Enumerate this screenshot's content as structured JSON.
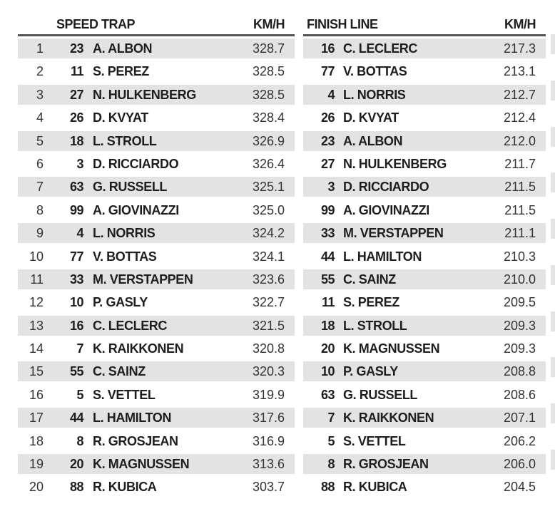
{
  "speed_trap": {
    "title": "SPEED TRAP",
    "unit": "KM/H",
    "rows": [
      {
        "pos": "1",
        "num": "23",
        "driver": "A. ALBON",
        "speed": "328.7"
      },
      {
        "pos": "2",
        "num": "11",
        "driver": "S. PEREZ",
        "speed": "328.5"
      },
      {
        "pos": "3",
        "num": "27",
        "driver": "N. HULKENBERG",
        "speed": "328.5"
      },
      {
        "pos": "4",
        "num": "26",
        "driver": "D. KVYAT",
        "speed": "328.4"
      },
      {
        "pos": "5",
        "num": "18",
        "driver": "L. STROLL",
        "speed": "326.9"
      },
      {
        "pos": "6",
        "num": "3",
        "driver": "D. RICCIARDO",
        "speed": "326.4"
      },
      {
        "pos": "7",
        "num": "63",
        "driver": "G. RUSSELL",
        "speed": "325.1"
      },
      {
        "pos": "8",
        "num": "99",
        "driver": "A. GIOVINAZZI",
        "speed": "325.0"
      },
      {
        "pos": "9",
        "num": "4",
        "driver": "L. NORRIS",
        "speed": "324.2"
      },
      {
        "pos": "10",
        "num": "77",
        "driver": "V. BOTTAS",
        "speed": "324.1"
      },
      {
        "pos": "11",
        "num": "33",
        "driver": "M. VERSTAPPEN",
        "speed": "323.6"
      },
      {
        "pos": "12",
        "num": "10",
        "driver": "P. GASLY",
        "speed": "322.7"
      },
      {
        "pos": "13",
        "num": "16",
        "driver": "C. LECLERC",
        "speed": "321.5"
      },
      {
        "pos": "14",
        "num": "7",
        "driver": "K. RAIKKONEN",
        "speed": "320.8"
      },
      {
        "pos": "15",
        "num": "55",
        "driver": "C. SAINZ",
        "speed": "320.3"
      },
      {
        "pos": "16",
        "num": "5",
        "driver": "S. VETTEL",
        "speed": "319.9"
      },
      {
        "pos": "17",
        "num": "44",
        "driver": "L. HAMILTON",
        "speed": "317.6"
      },
      {
        "pos": "18",
        "num": "8",
        "driver": "R. GROSJEAN",
        "speed": "316.9"
      },
      {
        "pos": "19",
        "num": "20",
        "driver": "K. MAGNUSSEN",
        "speed": "313.6"
      },
      {
        "pos": "20",
        "num": "88",
        "driver": "R. KUBICA",
        "speed": "303.7"
      }
    ]
  },
  "finish_line": {
    "title": "FINISH LINE",
    "unit": "KM/H",
    "rows": [
      {
        "num": "16",
        "driver": "C. LECLERC",
        "speed": "217.3"
      },
      {
        "num": "77",
        "driver": "V. BOTTAS",
        "speed": "213.1"
      },
      {
        "num": "4",
        "driver": "L. NORRIS",
        "speed": "212.7"
      },
      {
        "num": "26",
        "driver": "D. KVYAT",
        "speed": "212.4"
      },
      {
        "num": "23",
        "driver": "A. ALBON",
        "speed": "212.0"
      },
      {
        "num": "27",
        "driver": "N. HULKENBERG",
        "speed": "211.7"
      },
      {
        "num": "3",
        "driver": "D. RICCIARDO",
        "speed": "211.5"
      },
      {
        "num": "99",
        "driver": "A. GIOVINAZZI",
        "speed": "211.5"
      },
      {
        "num": "33",
        "driver": "M. VERSTAPPEN",
        "speed": "211.1"
      },
      {
        "num": "44",
        "driver": "L. HAMILTON",
        "speed": "210.3"
      },
      {
        "num": "55",
        "driver": "C. SAINZ",
        "speed": "210.0"
      },
      {
        "num": "11",
        "driver": "S. PEREZ",
        "speed": "209.5"
      },
      {
        "num": "18",
        "driver": "L. STROLL",
        "speed": "209.3"
      },
      {
        "num": "20",
        "driver": "K. MAGNUSSEN",
        "speed": "209.3"
      },
      {
        "num": "10",
        "driver": "P. GASLY",
        "speed": "208.8"
      },
      {
        "num": "63",
        "driver": "G. RUSSELL",
        "speed": "208.6"
      },
      {
        "num": "7",
        "driver": "K. RAIKKONEN",
        "speed": "207.1"
      },
      {
        "num": "5",
        "driver": "S. VETTEL",
        "speed": "206.2"
      },
      {
        "num": "8",
        "driver": "R. GROSJEAN",
        "speed": "206.0"
      },
      {
        "num": "88",
        "driver": "R. KUBICA",
        "speed": "204.5"
      }
    ]
  }
}
